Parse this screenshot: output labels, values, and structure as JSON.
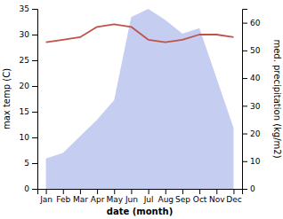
{
  "chart_data": {
    "type": "line",
    "categories": [
      "Jan",
      "Feb",
      "Mar",
      "Apr",
      "May",
      "Jun",
      "Jul",
      "Aug",
      "Sep",
      "Oct",
      "Nov",
      "Dec"
    ],
    "series": [
      {
        "type": "area",
        "axis": "y2",
        "color": "#c5cdf0",
        "values": [
          11,
          13,
          19,
          25,
          32,
          62,
          65,
          61,
          56,
          58,
          40,
          22
        ]
      },
      {
        "type": "line",
        "color": "#c0524a",
        "values": [
          28.5,
          29.0,
          29.5,
          31.5,
          32.0,
          31.5,
          29.0,
          28.5,
          29.0,
          30.0,
          30.0,
          29.5
        ]
      }
    ],
    "xlabel": "date (month)",
    "ylabel": "max temp (C)",
    "y2label": "med. precipitation (kg/m2)",
    "ylim": [
      0,
      35
    ],
    "yticks": [
      0,
      5,
      10,
      15,
      20,
      25,
      30,
      35
    ],
    "y2lim": [
      0,
      65
    ],
    "y2ticks": [
      0,
      10,
      20,
      30,
      40,
      50,
      60
    ],
    "grid": false
  }
}
